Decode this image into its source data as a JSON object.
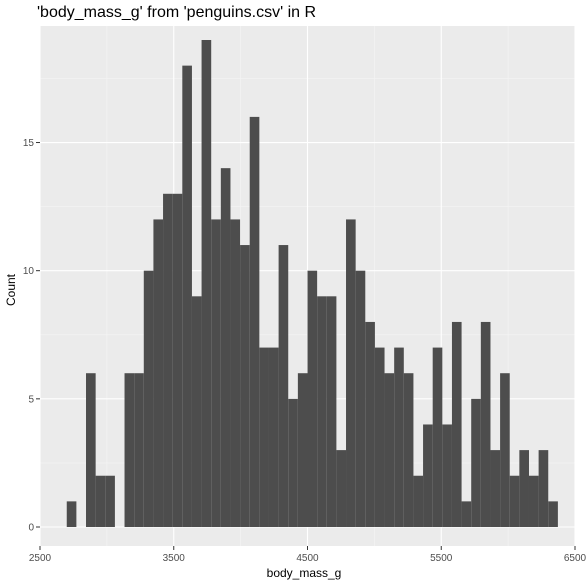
{
  "chart_data": {
    "type": "bar",
    "title": "'body_mass_g' from 'penguins.csv' in R",
    "xlabel": "body_mass_g",
    "ylabel": "Count",
    "xlim": [
      2500,
      6500
    ],
    "ylim": [
      0,
      19.5
    ],
    "x_ticks": [
      2500,
      3500,
      4500,
      5500,
      6500
    ],
    "y_ticks": [
      0,
      5,
      10,
      15
    ],
    "bin_start": 2700,
    "bin_width": 72,
    "values": [
      1,
      0,
      6,
      2,
      2,
      0,
      6,
      6,
      10,
      12,
      13,
      13,
      18,
      9,
      19,
      12,
      14,
      12,
      11,
      16,
      7,
      7,
      11,
      5,
      6,
      10,
      9,
      9,
      3,
      12,
      10,
      8,
      7,
      6,
      7,
      6,
      2,
      4,
      7,
      4,
      8,
      1,
      5,
      8,
      3,
      6,
      2,
      3,
      2,
      3,
      0,
      0,
      0,
      0,
      0,
      0,
      0,
      0,
      0,
      0,
      0,
      0,
      0,
      0,
      0,
      0,
      0,
      0,
      0,
      0,
      0,
      0,
      0,
      0,
      0,
      0,
      0,
      0,
      0,
      0,
      0,
      0,
      0,
      0,
      0,
      0,
      0,
      0,
      0,
      0,
      0,
      0,
      0,
      0,
      0,
      0,
      0,
      0,
      0,
      0,
      0,
      0
    ],
    "outlier_bin": {
      "x0": 6300,
      "x1": 6372,
      "value": 1
    },
    "grid": true,
    "colors": {
      "bar": "#4d4d4d",
      "panel": "#ebebeb",
      "grid_major": "#ffffff",
      "grid_minor": "#f5f5f5",
      "tick_text": "#4d4d4d"
    }
  }
}
